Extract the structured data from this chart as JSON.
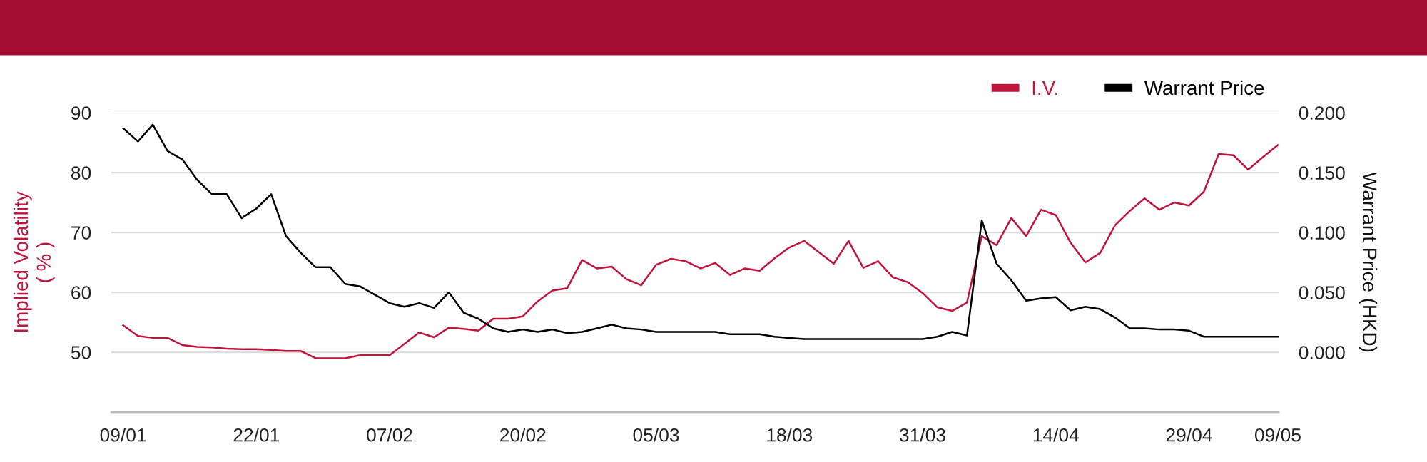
{
  "chart_data": {
    "type": "line",
    "categories": [
      "09/01",
      null,
      null,
      null,
      null,
      null,
      null,
      null,
      null,
      "22/01",
      null,
      null,
      null,
      null,
      null,
      null,
      null,
      null,
      "07/02",
      null,
      null,
      null,
      null,
      null,
      null,
      null,
      null,
      "20/02",
      null,
      null,
      null,
      null,
      null,
      null,
      null,
      null,
      "05/03",
      null,
      null,
      null,
      null,
      null,
      null,
      null,
      null,
      "18/03",
      null,
      null,
      null,
      null,
      null,
      null,
      null,
      null,
      "31/03",
      null,
      null,
      null,
      null,
      null,
      null,
      null,
      null,
      "14/04",
      null,
      null,
      null,
      null,
      null,
      null,
      null,
      null,
      "29/04",
      null,
      null,
      null,
      null,
      null,
      "09/05"
    ],
    "series": [
      {
        "name": "I.V.",
        "color": "#c0143c",
        "values": [
          54.5,
          52.7,
          52.4,
          52.4,
          51.2,
          50.9,
          50.8,
          50.6,
          50.5,
          50.5,
          50.4,
          50.2,
          50.2,
          49.0,
          49.0,
          49.0,
          49.5,
          49.5,
          49.5,
          51.4,
          53.3,
          52.5,
          54.1,
          53.9,
          53.6,
          55.6,
          55.6,
          56.0,
          58.5,
          60.3,
          60.7,
          65.4,
          64.0,
          64.3,
          62.2,
          61.2,
          64.6,
          65.6,
          65.2,
          64.0,
          64.9,
          62.9,
          64.0,
          63.6,
          65.7,
          67.5,
          68.6,
          66.7,
          64.8,
          68.6,
          64.1,
          65.2,
          62.5,
          61.7,
          59.9,
          57.5,
          56.9,
          58.3,
          69.4,
          67.9,
          72.4,
          69.4,
          73.8,
          72.9,
          68.3,
          65.0,
          66.6,
          71.2,
          73.6,
          75.7,
          73.8,
          75.0,
          74.5,
          76.8,
          83.1,
          82.9,
          80.5,
          82.6,
          84.6
        ]
      },
      {
        "name": "Warrant Price",
        "color": "#000000",
        "axis": "y2",
        "values": [
          0.187,
          0.176,
          0.19,
          0.168,
          0.161,
          0.144,
          0.132,
          0.132,
          0.112,
          0.12,
          0.132,
          0.097,
          0.083,
          0.071,
          0.071,
          0.057,
          0.055,
          0.048,
          0.041,
          0.038,
          0.041,
          0.037,
          0.05,
          0.033,
          0.028,
          0.02,
          0.017,
          0.019,
          0.017,
          0.019,
          0.016,
          0.017,
          0.02,
          0.023,
          0.02,
          0.019,
          0.017,
          0.017,
          0.017,
          0.017,
          0.017,
          0.015,
          0.015,
          0.015,
          0.013,
          0.012,
          0.011,
          0.011,
          0.011,
          0.011,
          0.011,
          0.011,
          0.011,
          0.011,
          0.011,
          0.013,
          0.017,
          0.014,
          0.11,
          0.074,
          0.06,
          0.043,
          0.045,
          0.046,
          0.035,
          0.038,
          0.036,
          0.029,
          0.02,
          0.02,
          0.019,
          0.019,
          0.018,
          0.013,
          0.013,
          0.013,
          0.013,
          0.013,
          0.013
        ]
      }
    ],
    "ylabel": "Implied Volatility\n( % )",
    "y2label": "Warrant Price (HKD)",
    "ylim": [
      40,
      90
    ],
    "yticks": [
      50,
      60,
      70,
      80,
      90
    ],
    "y2lim": [
      -0.05,
      0.2
    ],
    "y2ticks": [
      {
        "value": 0,
        "label": "0.000"
      },
      {
        "value": 0.05,
        "label": "0.050"
      },
      {
        "value": 0.1,
        "label": "0.100"
      },
      {
        "value": 0.15,
        "label": "0.150"
      },
      {
        "value": 0.2,
        "label": "0.200"
      }
    ],
    "grid": "y",
    "legend": "top right",
    "marker": "none",
    "line_style": "solid"
  }
}
